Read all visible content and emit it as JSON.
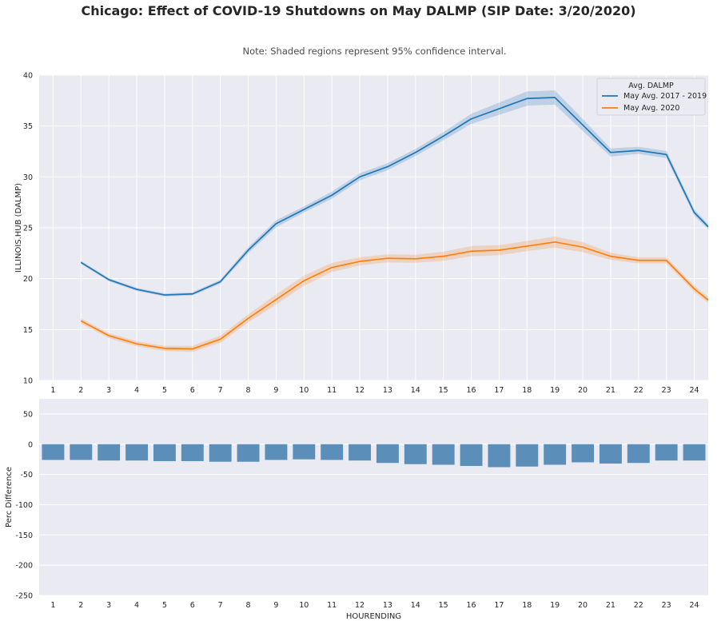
{
  "title": "Chicago: Effect of COVID-19 Shutdowns on May DALMP (SIP Date: 3/20/2020)",
  "subtitle": "Note: Shaded regions represent 95% confidence interval.",
  "chart_data": [
    {
      "type": "line",
      "ylabel": "ILLINOIS.HUB (DALMP)",
      "xlabel": "",
      "x": [
        1,
        2,
        3,
        4,
        5,
        6,
        7,
        8,
        9,
        10,
        11,
        12,
        13,
        14,
        15,
        16,
        17,
        18,
        19,
        20,
        21,
        22,
        23,
        24
      ],
      "xlim": [
        0.5,
        24.5
      ],
      "ylim": [
        10,
        40
      ],
      "yticks": [
        10,
        15,
        20,
        25,
        30,
        35,
        40
      ],
      "legend": {
        "title": "Avg. DALMP",
        "position": "top-right"
      },
      "series": [
        {
          "name": "May Avg. 2017 - 2019",
          "color": "#1f77b4",
          "x": [
            2,
            3,
            4,
            5,
            6,
            7,
            8,
            9,
            10,
            11,
            12,
            13,
            14,
            15,
            16,
            17,
            18,
            19,
            20,
            21,
            22,
            23,
            24,
            24.5
          ],
          "values": [
            21.6,
            19.9,
            18.95,
            18.4,
            18.5,
            19.7,
            22.8,
            25.4,
            26.8,
            28.2,
            30.0,
            31.0,
            32.4,
            34.0,
            35.7,
            36.7,
            37.7,
            37.8,
            35.1,
            32.4,
            32.6,
            32.2,
            26.5,
            25.1
          ],
          "ci": [
            0.15,
            0.15,
            0.15,
            0.15,
            0.15,
            0.2,
            0.3,
            0.35,
            0.3,
            0.35,
            0.35,
            0.35,
            0.35,
            0.4,
            0.5,
            0.6,
            0.7,
            0.7,
            0.6,
            0.4,
            0.35,
            0.35,
            0.3,
            0.25
          ]
        },
        {
          "name": "May Avg. 2020",
          "color": "#ff7f0e",
          "x": [
            2,
            3,
            4,
            5,
            6,
            7,
            8,
            9,
            10,
            11,
            12,
            13,
            14,
            15,
            16,
            17,
            18,
            19,
            20,
            21,
            22,
            23,
            24,
            24.5
          ],
          "values": [
            15.85,
            14.4,
            13.6,
            13.15,
            13.1,
            14.05,
            16.1,
            17.95,
            19.8,
            21.1,
            21.7,
            22.0,
            21.95,
            22.2,
            22.7,
            22.8,
            23.2,
            23.6,
            23.1,
            22.2,
            21.8,
            21.8,
            19.0,
            17.9
          ],
          "ci": [
            0.25,
            0.25,
            0.25,
            0.25,
            0.3,
            0.35,
            0.4,
            0.5,
            0.5,
            0.45,
            0.4,
            0.4,
            0.4,
            0.45,
            0.5,
            0.5,
            0.5,
            0.55,
            0.5,
            0.35,
            0.3,
            0.3,
            0.3,
            0.3
          ]
        }
      ]
    },
    {
      "type": "bar",
      "xlabel": "HOURENDING",
      "ylabel": "Perc Difference",
      "categories": [
        "1",
        "2",
        "3",
        "4",
        "5",
        "6",
        "7",
        "8",
        "9",
        "10",
        "11",
        "12",
        "13",
        "14",
        "15",
        "16",
        "17",
        "18",
        "19",
        "20",
        "21",
        "22",
        "23",
        "24"
      ],
      "values": [
        -26,
        -26,
        -27,
        -27,
        -28,
        -28,
        -29,
        -29,
        -26,
        -25,
        -26,
        -27,
        -31,
        -33,
        -34,
        -36,
        -38,
        -37,
        -34,
        -30,
        -32,
        -31,
        -27,
        -27
      ],
      "color": "#5b8fb9",
      "ylim": [
        -250,
        75
      ],
      "yticks": [
        -250,
        -200,
        -150,
        -100,
        -50,
        0,
        50
      ]
    }
  ]
}
